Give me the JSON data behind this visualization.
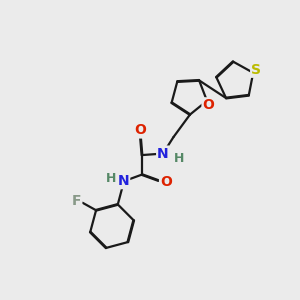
{
  "background_color": "#ebebeb",
  "bond_color": "#1a1a1a",
  "atom_colors": {
    "O": "#dd2200",
    "N": "#2222dd",
    "S": "#bbbb00",
    "F": "#889988",
    "H": "#558866",
    "C": "#1a1a1a"
  },
  "figsize": [
    3.0,
    3.0
  ],
  "dpi": 100
}
